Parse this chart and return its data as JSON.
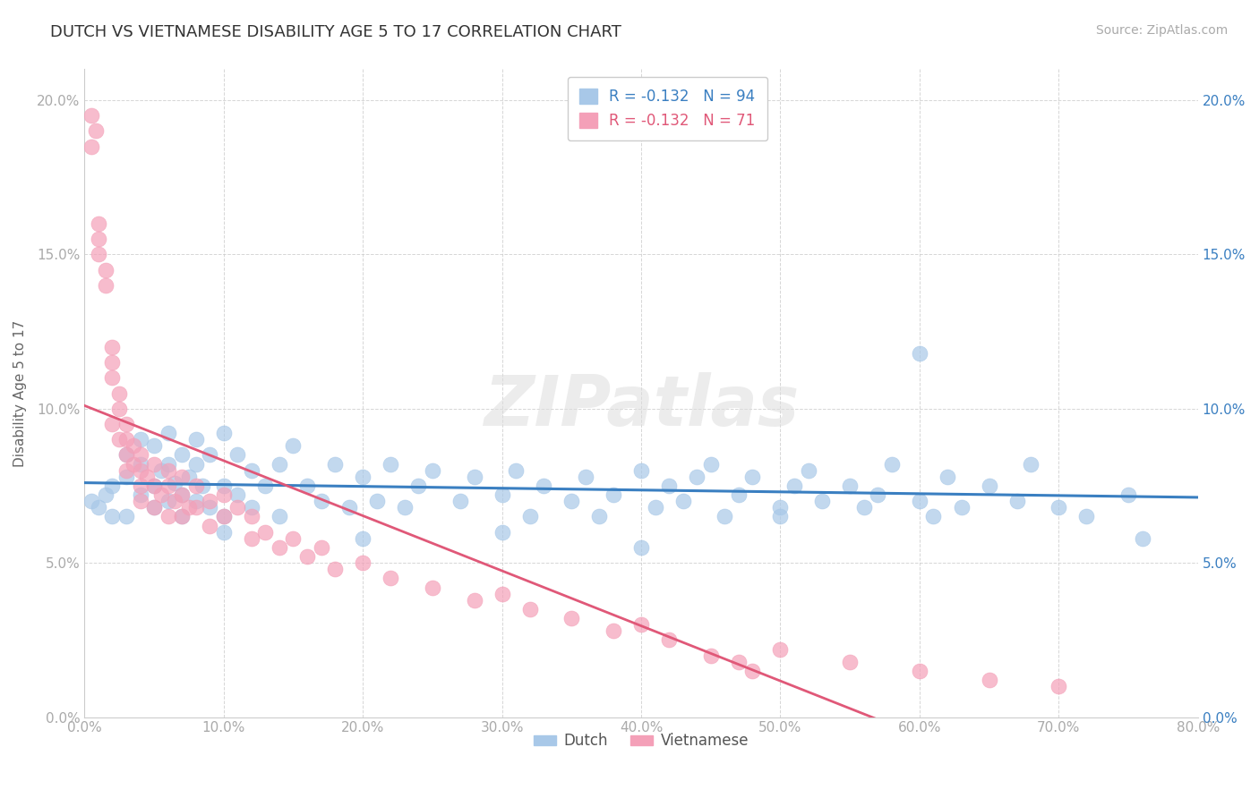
{
  "title": "DUTCH VS VIETNAMESE DISABILITY AGE 5 TO 17 CORRELATION CHART",
  "source_text": "Source: ZipAtlas.com",
  "ylabel": "Disability Age 5 to 17",
  "xlim": [
    0.0,
    0.8
  ],
  "ylim": [
    0.0,
    0.21
  ],
  "x_ticks": [
    0.0,
    0.1,
    0.2,
    0.3,
    0.4,
    0.5,
    0.6,
    0.7,
    0.8
  ],
  "x_tick_labels": [
    "0.0%",
    "10.0%",
    "20.0%",
    "30.0%",
    "40.0%",
    "50.0%",
    "60.0%",
    "70.0%",
    "80.0%"
  ],
  "y_ticks": [
    0.0,
    0.05,
    0.1,
    0.15,
    0.2
  ],
  "y_tick_labels": [
    "0.0%",
    "5.0%",
    "10.0%",
    "15.0%",
    "20.0%"
  ],
  "dutch_color": "#a8c8e8",
  "vietnamese_color": "#f4a0b8",
  "dutch_line_color": "#3a7fc1",
  "vietnamese_line_color": "#e05878",
  "watermark": "ZIPatlas",
  "legend_dutch_label": "R = -0.132   N = 94",
  "legend_viet_label": "R = -0.132   N = 71",
  "background_color": "#ffffff",
  "grid_color": "#cccccc",
  "title_color": "#333333",
  "axis_label_color": "#666666",
  "tick_label_color_left": "#aaaaaa",
  "tick_label_color_right": "#3a7fc1",
  "title_fontsize": 13,
  "label_fontsize": 11,
  "tick_fontsize": 11,
  "legend_fontsize": 12,
  "source_fontsize": 10,
  "dutch_scatter_x": [
    0.005,
    0.01,
    0.015,
    0.02,
    0.02,
    0.03,
    0.03,
    0.03,
    0.04,
    0.04,
    0.04,
    0.05,
    0.05,
    0.05,
    0.055,
    0.06,
    0.06,
    0.06,
    0.065,
    0.07,
    0.07,
    0.07,
    0.075,
    0.08,
    0.08,
    0.08,
    0.085,
    0.09,
    0.09,
    0.1,
    0.1,
    0.1,
    0.11,
    0.11,
    0.12,
    0.12,
    0.13,
    0.14,
    0.14,
    0.15,
    0.16,
    0.17,
    0.18,
    0.19,
    0.2,
    0.21,
    0.22,
    0.23,
    0.24,
    0.25,
    0.27,
    0.28,
    0.3,
    0.31,
    0.32,
    0.33,
    0.35,
    0.36,
    0.37,
    0.38,
    0.4,
    0.41,
    0.42,
    0.43,
    0.44,
    0.45,
    0.46,
    0.47,
    0.48,
    0.5,
    0.51,
    0.52,
    0.53,
    0.55,
    0.56,
    0.57,
    0.58,
    0.6,
    0.61,
    0.62,
    0.63,
    0.65,
    0.67,
    0.68,
    0.7,
    0.72,
    0.75,
    0.76,
    0.6,
    0.5,
    0.4,
    0.3,
    0.2,
    0.1
  ],
  "dutch_scatter_y": [
    0.07,
    0.068,
    0.072,
    0.075,
    0.065,
    0.085,
    0.078,
    0.065,
    0.09,
    0.072,
    0.082,
    0.088,
    0.075,
    0.068,
    0.08,
    0.092,
    0.07,
    0.082,
    0.076,
    0.085,
    0.072,
    0.065,
    0.078,
    0.082,
    0.07,
    0.09,
    0.075,
    0.068,
    0.085,
    0.092,
    0.075,
    0.065,
    0.085,
    0.072,
    0.08,
    0.068,
    0.075,
    0.082,
    0.065,
    0.088,
    0.075,
    0.07,
    0.082,
    0.068,
    0.078,
    0.07,
    0.082,
    0.068,
    0.075,
    0.08,
    0.07,
    0.078,
    0.072,
    0.08,
    0.065,
    0.075,
    0.07,
    0.078,
    0.065,
    0.072,
    0.08,
    0.068,
    0.075,
    0.07,
    0.078,
    0.082,
    0.065,
    0.072,
    0.078,
    0.068,
    0.075,
    0.08,
    0.07,
    0.075,
    0.068,
    0.072,
    0.082,
    0.07,
    0.065,
    0.078,
    0.068,
    0.075,
    0.07,
    0.082,
    0.068,
    0.065,
    0.072,
    0.058,
    0.118,
    0.065,
    0.055,
    0.06,
    0.058,
    0.06
  ],
  "viet_scatter_x": [
    0.005,
    0.005,
    0.008,
    0.01,
    0.01,
    0.01,
    0.015,
    0.015,
    0.02,
    0.02,
    0.02,
    0.02,
    0.025,
    0.025,
    0.025,
    0.03,
    0.03,
    0.03,
    0.03,
    0.035,
    0.035,
    0.04,
    0.04,
    0.04,
    0.04,
    0.045,
    0.05,
    0.05,
    0.05,
    0.055,
    0.06,
    0.06,
    0.06,
    0.065,
    0.07,
    0.07,
    0.07,
    0.075,
    0.08,
    0.08,
    0.09,
    0.09,
    0.1,
    0.1,
    0.11,
    0.12,
    0.12,
    0.13,
    0.14,
    0.15,
    0.16,
    0.17,
    0.18,
    0.2,
    0.22,
    0.25,
    0.28,
    0.3,
    0.32,
    0.35,
    0.38,
    0.4,
    0.42,
    0.45,
    0.47,
    0.48,
    0.5,
    0.55,
    0.6,
    0.65,
    0.7
  ],
  "viet_scatter_y": [
    0.195,
    0.185,
    0.19,
    0.16,
    0.155,
    0.15,
    0.145,
    0.14,
    0.12,
    0.115,
    0.11,
    0.095,
    0.105,
    0.1,
    0.09,
    0.095,
    0.09,
    0.085,
    0.08,
    0.088,
    0.082,
    0.085,
    0.08,
    0.075,
    0.07,
    0.078,
    0.082,
    0.075,
    0.068,
    0.072,
    0.08,
    0.075,
    0.065,
    0.07,
    0.078,
    0.072,
    0.065,
    0.068,
    0.075,
    0.068,
    0.07,
    0.062,
    0.072,
    0.065,
    0.068,
    0.065,
    0.058,
    0.06,
    0.055,
    0.058,
    0.052,
    0.055,
    0.048,
    0.05,
    0.045,
    0.042,
    0.038,
    0.04,
    0.035,
    0.032,
    0.028,
    0.03,
    0.025,
    0.02,
    0.018,
    0.015,
    0.022,
    0.018,
    0.015,
    0.012,
    0.01
  ]
}
